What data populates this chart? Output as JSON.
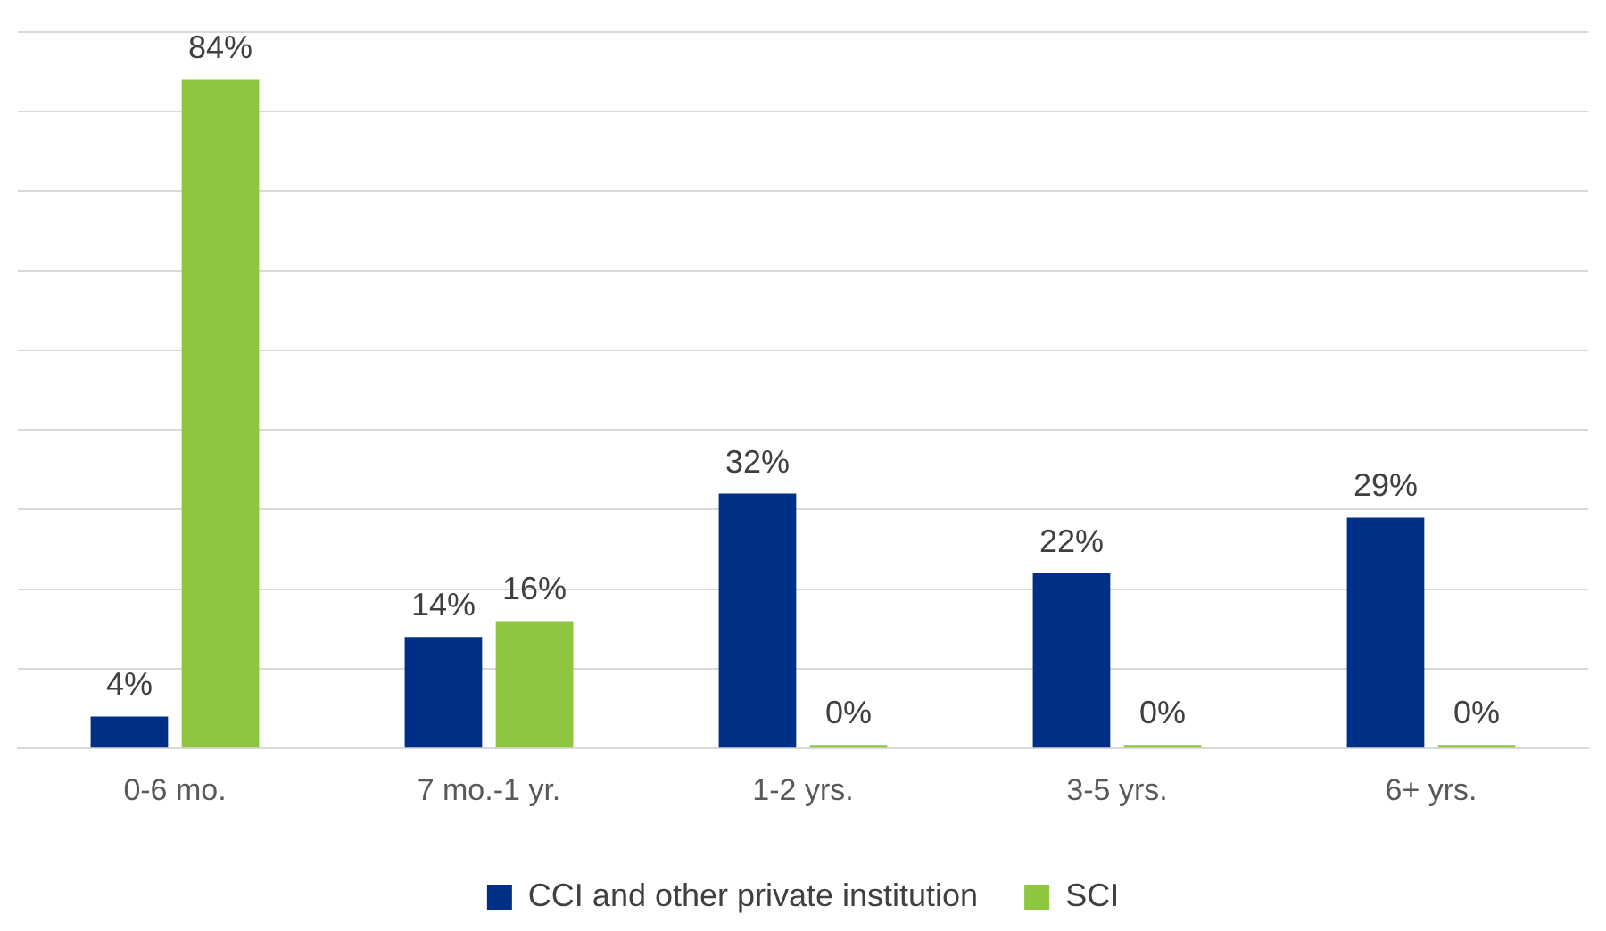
{
  "chart_data": {
    "type": "bar",
    "categories": [
      "0-6 mo.",
      "7 mo.-1 yr.",
      "1-2 yrs.",
      "3-5 yrs.",
      "6+ yrs."
    ],
    "series": [
      {
        "name": "CCI and other private institution",
        "color": "#002f87",
        "values": [
          4,
          14,
          32,
          22,
          29
        ],
        "value_labels": [
          "4%",
          "14%",
          "32%",
          "22%",
          "29%"
        ]
      },
      {
        "name": "SCI",
        "color": "#8dc63f",
        "values": [
          84,
          16,
          0,
          0,
          0
        ],
        "value_labels": [
          "84%",
          "16%",
          "0%",
          "0%",
          "0%"
        ]
      }
    ],
    "ylim": [
      0,
      90
    ],
    "yticks": [
      {
        "value": 0,
        "label": null
      },
      {
        "value": 10,
        "label": null
      },
      {
        "value": 20,
        "label": null
      },
      {
        "value": 30,
        "label": null
      },
      {
        "value": 40,
        "label": null
      },
      {
        "value": 50,
        "label": null
      },
      {
        "value": 60,
        "label": null
      },
      {
        "value": 70,
        "label": null
      },
      {
        "value": 80,
        "label": null
      },
      {
        "value": 90,
        "label": null
      }
    ],
    "grid": "y",
    "legend": "bottom",
    "tick_labels": "x"
  }
}
